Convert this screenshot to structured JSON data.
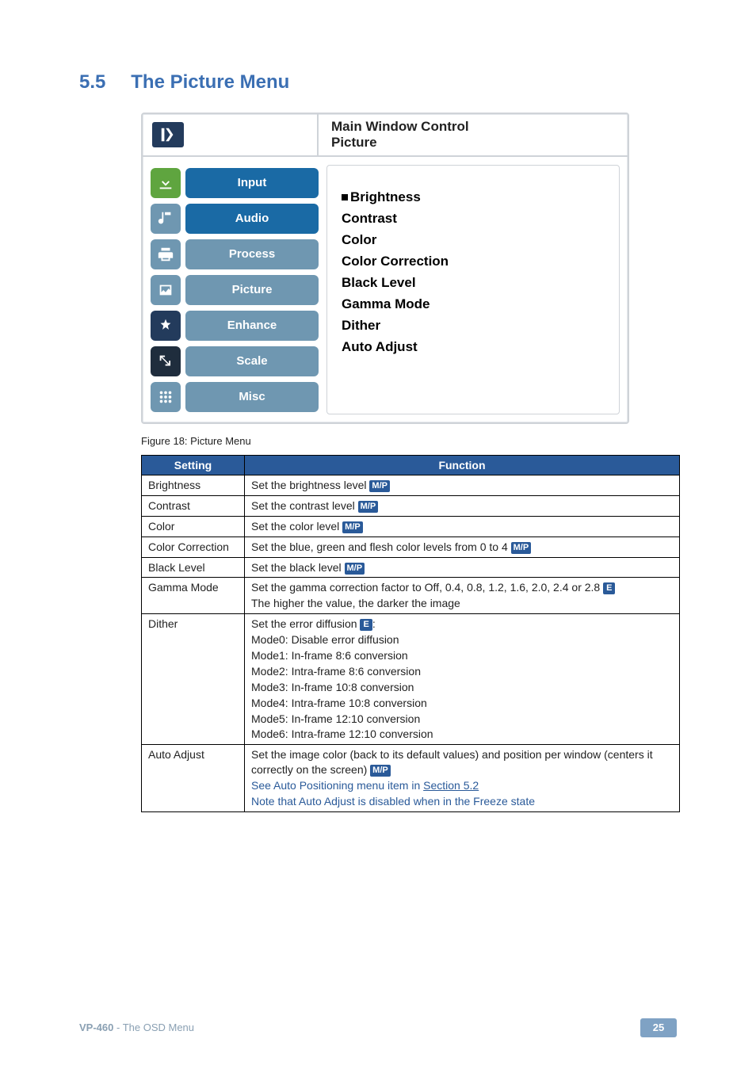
{
  "header": {
    "num": "5.5",
    "title": "The Picture Menu"
  },
  "osd": {
    "breadcrumb": {
      "line1": "Main Window Control",
      "line2": "Picture"
    },
    "sidebar": [
      {
        "label": "Input",
        "active": true,
        "icon": "download",
        "btnClass": "active"
      },
      {
        "label": "Audio",
        "active": false,
        "icon": "note",
        "btnClass": "active"
      },
      {
        "label": "Process",
        "active": false,
        "icon": "printer",
        "btnClass": ""
      },
      {
        "label": "Picture",
        "active": false,
        "icon": "picture",
        "btnClass": ""
      },
      {
        "label": "Enhance",
        "active": false,
        "icon": "enhance",
        "btnClass": ""
      },
      {
        "label": "Scale",
        "active": false,
        "icon": "scale",
        "btnClass": ""
      },
      {
        "label": "Misc",
        "active": false,
        "icon": "misc",
        "btnClass": ""
      }
    ],
    "content": [
      {
        "label": "Brightness",
        "bold": false,
        "bullet": true
      },
      {
        "label": "Contrast",
        "bold": true,
        "bullet": false
      },
      {
        "label": "Color",
        "bold": true,
        "bullet": false
      },
      {
        "label": "Color Correction",
        "bold": true,
        "bullet": false
      },
      {
        "label": "Black Level",
        "bold": true,
        "bullet": false
      },
      {
        "label": "Gamma Mode",
        "bold": true,
        "bullet": false
      },
      {
        "label": "Dither",
        "bold": true,
        "bullet": false
      },
      {
        "label": "Auto Adjust",
        "bold": true,
        "bullet": false
      }
    ]
  },
  "figcap": "Figure 18: Picture Menu",
  "table": {
    "headers": [
      "Setting",
      "Function"
    ],
    "rows": [
      {
        "setting": "Brightness",
        "func": "Set the brightness level ",
        "badge": "M/P"
      },
      {
        "setting": "Contrast",
        "func": "Set the contrast level ",
        "badge": "M/P"
      },
      {
        "setting": "Color",
        "func": "Set the color level ",
        "badge": "M/P"
      },
      {
        "setting": "Color Correction",
        "func": "Set the blue, green and flesh color levels from 0 to 4 ",
        "badge": "M/P"
      },
      {
        "setting": "Black Level",
        "func": "Set the black level ",
        "badge": "M/P"
      },
      {
        "setting": "Gamma Mode",
        "lines": [
          {
            "text": "Set the gamma correction factor to Off, 0.4, 0.8, 1.2, 1.6, 2.0, 2.4 or 2.8 ",
            "badgeE": "E"
          },
          {
            "text": "The higher the value, the darker the image"
          }
        ]
      },
      {
        "setting": "Dither",
        "lines": [
          {
            "text": "Set the error diffusion ",
            "badgeE": "E",
            "tail": ":"
          },
          {
            "text": "Mode0: Disable error diffusion"
          },
          {
            "text": "Mode1: In-frame 8:6 conversion"
          },
          {
            "text": "Mode2: Intra-frame 8:6 conversion"
          },
          {
            "text": "Mode3: In-frame 10:8 conversion"
          },
          {
            "text": "Mode4: Intra-frame 10:8 conversion"
          },
          {
            "text": "Mode5: In-frame 12:10 conversion"
          },
          {
            "text": "Mode6: Intra-frame 12:10 conversion"
          }
        ]
      },
      {
        "setting": "Auto Adjust",
        "lines": [
          {
            "text": "Set the image color (back to its default values) and position per window (centers it correctly on the screen) ",
            "badge": "M/P"
          },
          {
            "note": true,
            "pre": "See Auto Positioning menu item in ",
            "link": "Section 5.2"
          },
          {
            "note": true,
            "text": "Note that Auto Adjust is disabled when in the Freeze state"
          }
        ]
      }
    ]
  },
  "footer": {
    "product": "VP-460",
    "section": " - The OSD Menu",
    "page": "25"
  }
}
